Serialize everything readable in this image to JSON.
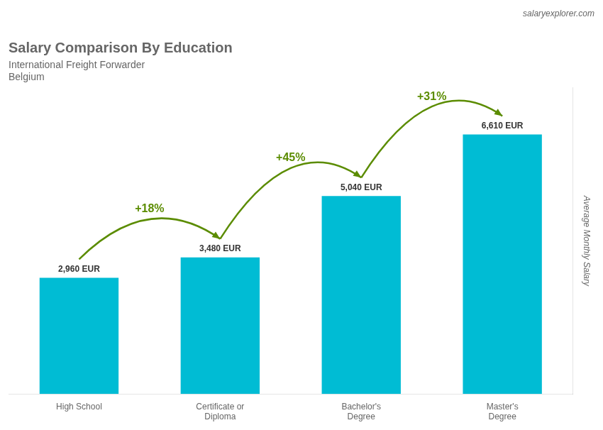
{
  "chart_data": {
    "type": "bar",
    "title": "Salary Comparison By Education",
    "subtitle": [
      "International Freight Forwarder",
      "Belgium"
    ],
    "source": "salaryexplorer.com",
    "categories": [
      "High School",
      "Certificate or\nDiploma",
      "Bachelor's\nDegree",
      "Master's\nDegree"
    ],
    "values": [
      2960,
      3480,
      5040,
      6610
    ],
    "value_labels": [
      "2,960 EUR",
      "3,480 EUR",
      "5,040 EUR",
      "6,610 EUR"
    ],
    "data_labels": true,
    "annotations": [
      "+18%",
      "+45%",
      "+31%"
    ],
    "color": "#00bcd4",
    "ylabel": "Average Monthly Salary",
    "ylim": [
      0,
      7800
    ],
    "tick_labels": "x",
    "grid": false
  }
}
